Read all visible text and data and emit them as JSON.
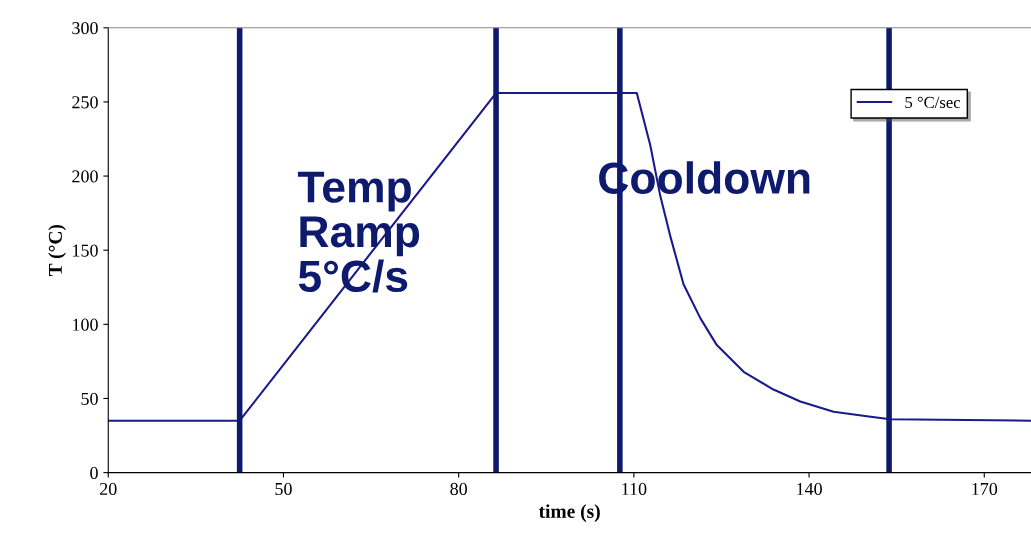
{
  "chart_data": {
    "type": "line",
    "xlabel": "time (s)",
    "ylabel": "T (°C)",
    "xlim": [
      20,
      178
    ],
    "xticks": [
      20,
      50,
      80,
      110,
      140,
      170
    ],
    "ylim": [
      0,
      300
    ],
    "yticks": [
      0,
      50,
      100,
      150,
      200,
      250,
      300
    ],
    "grid": false,
    "legend": "top right",
    "marker": "none",
    "line_style": "solid",
    "series": [
      {
        "name": "5 °C/sec",
        "color": "#1a1a8c",
        "x": [
          20,
          42.5,
          86.4,
          110.5,
          112.8,
          114.5,
          116.2,
          118.5,
          121.4,
          124.2,
          128.8,
          133.9,
          138.5,
          144.2,
          149.9,
          153.9,
          178
        ],
        "values": [
          35,
          35,
          256,
          256,
          221,
          187,
          160,
          127,
          104,
          86,
          68,
          56,
          48,
          41,
          38,
          36,
          35
        ]
      }
    ],
    "ref_lines": [
      {
        "axis": "x",
        "value": 42.5,
        "color": "#0d1a6e"
      },
      {
        "axis": "x",
        "value": 86.4,
        "color": "#0d1a6e"
      },
      {
        "axis": "x",
        "value": 107.6,
        "color": "#0d1a6e"
      },
      {
        "axis": "x",
        "value": 153.7,
        "color": "#0d1a6e"
      }
    ],
    "annotations": [
      "Temp\nRamp\n5°C/s",
      "Cooldown"
    ]
  }
}
